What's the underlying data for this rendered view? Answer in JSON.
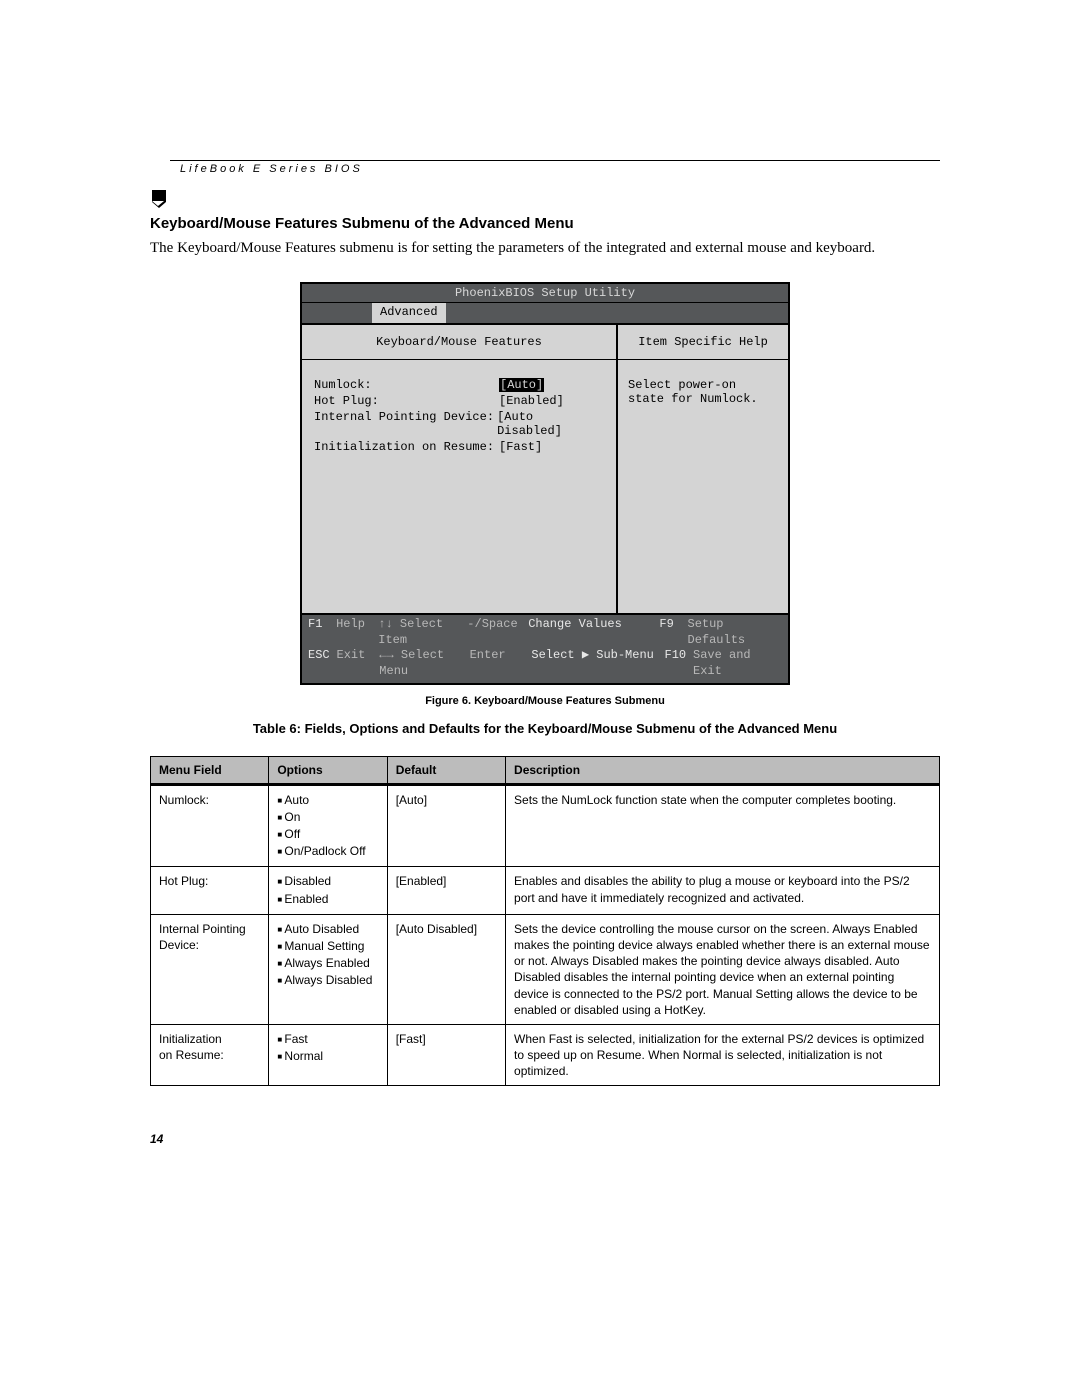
{
  "header_text": "LifeBook E Series BIOS",
  "section_title": "Keyboard/Mouse Features Submenu of the Advanced Menu",
  "intro": "The Keyboard/Mouse Features submenu is for setting the parameters of the integrated and external mouse and keyboard.",
  "bios": {
    "title": "PhoenixBIOS Setup Utility",
    "active_tab": "Advanced",
    "left_header": "Keyboard/Mouse Features",
    "right_header": "Item Specific Help",
    "help_text": "Select power-on state for Numlock.",
    "settings": [
      {
        "label": "Numlock:",
        "value": "[Auto]",
        "selected": true
      },
      {
        "label": "Hot Plug:",
        "value": "[Enabled]",
        "selected": false
      },
      {
        "label": "Internal Pointing Device:",
        "value": "[Auto Disabled]",
        "selected": false
      },
      {
        "label": "Initialization on Resume:",
        "value": "[Fast]",
        "selected": false
      }
    ],
    "footer": {
      "r1": {
        "k1": "F1",
        "l1": "Help",
        "a1": "↑↓ Select Item",
        "s1": "-/Space",
        "v1": "Change Values",
        "k2": "F9",
        "l2": "Setup Defaults"
      },
      "r2": {
        "k1": "ESC",
        "l1": "Exit",
        "a1": "←→ Select Menu",
        "s1": "Enter",
        "v1": "Select ▶ Sub-Menu",
        "k2": "F10",
        "l2": "Save and Exit"
      }
    }
  },
  "figure_caption": "Figure 6.  Keyboard/Mouse Features Submenu",
  "table_caption": "Table 6: Fields, Options and Defaults for the Keyboard/Mouse Submenu of the Advanced Menu",
  "table_headers": {
    "field": "Menu Field",
    "options": "Options",
    "def": "Default",
    "desc": "Description"
  },
  "rows": [
    {
      "field": "Numlock:",
      "options": [
        "Auto",
        "On",
        "Off",
        "On/Padlock Off"
      ],
      "def": "[Auto]",
      "desc": "Sets the NumLock function state when the computer completes booting."
    },
    {
      "field": "Hot Plug:",
      "options": [
        "Disabled",
        "Enabled"
      ],
      "def": "[Enabled]",
      "desc": "Enables and disables the ability to plug a mouse or keyboard into the PS/2 port and have it immediately recognized and activated."
    },
    {
      "field": "Internal Pointing Device:",
      "options": [
        "Auto Disabled",
        "Manual Setting",
        "Always Enabled",
        "Always Disabled"
      ],
      "def": "[Auto Disabled]",
      "desc": "Sets the device controlling the mouse cursor on the screen. Always Enabled makes the pointing device always enabled whether there is an external mouse or not. Always Disabled makes the pointing device always disabled. Auto Disabled disables the internal pointing device when an external pointing device is connected to the PS/2 port. Manual Setting allows the device to be enabled or disabled using a HotKey."
    },
    {
      "field": "Initialization on Resume:",
      "options": [
        "Fast",
        "Normal"
      ],
      "def": "[Fast]",
      "desc": "When Fast is selected, initialization for the external PS/2 devices is optimized to speed up on Resume. When Normal is selected, initialization is not optimized."
    }
  ],
  "page_number": "14"
}
